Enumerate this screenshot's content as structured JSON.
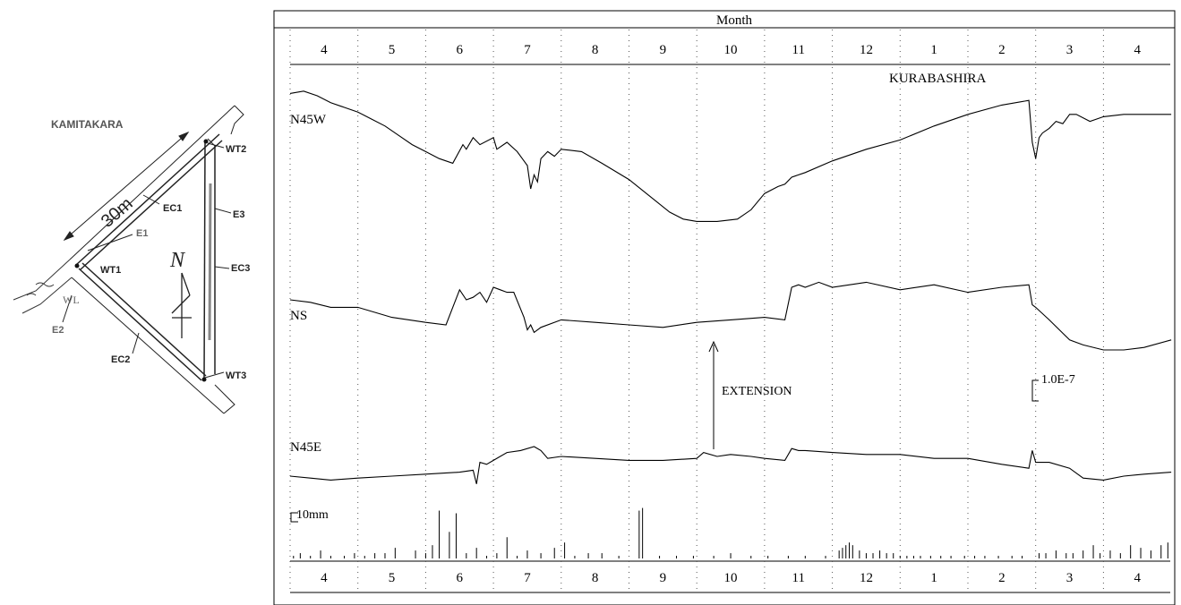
{
  "diagram": {
    "site_name": "KAMITAKARA",
    "length_label": "30m",
    "labels": {
      "wt1": "WT1",
      "wt2": "WT2",
      "wt3": "WT3",
      "ec1": "EC1",
      "ec2": "EC2",
      "ec3": "EC3",
      "e1": "E1",
      "e2": "E2",
      "e3": "E3",
      "wl": "WL",
      "north_symbol": "N"
    }
  },
  "chart_data": {
    "type": "line",
    "title": "Month",
    "station": "KURABASHIRA",
    "months": [
      "4",
      "5",
      "6",
      "7",
      "8",
      "9",
      "10",
      "11",
      "12",
      "1",
      "2",
      "3",
      "4"
    ],
    "series": [
      {
        "name": "N45W",
        "x": [
          0,
          0.2,
          0.4,
          0.6,
          0.8,
          1,
          1.2,
          1.4,
          1.6,
          1.8,
          2,
          2.2,
          2.4,
          2.55,
          2.6,
          2.7,
          2.8,
          3,
          3.05,
          3.2,
          3.35,
          3.45,
          3.5,
          3.55,
          3.6,
          3.65,
          3.7,
          3.8,
          3.9,
          4,
          4.3,
          4.6,
          5,
          5.3,
          5.6,
          5.8,
          6,
          6.3,
          6.6,
          6.8,
          7,
          7.2,
          7.3,
          7.4,
          7.6,
          8,
          8.5,
          9,
          9.5,
          10,
          10.5,
          10.9,
          10.95,
          11,
          11.05,
          11.1,
          11.2,
          11.3,
          11.4,
          11.5,
          11.6,
          11.8,
          12,
          12.3,
          12.6,
          13
        ],
        "y": [
          0.6,
          0.7,
          0.5,
          0.2,
          0,
          -0.2,
          -0.5,
          -0.8,
          -1.2,
          -1.6,
          -1.9,
          -2.2,
          -2.4,
          -1.6,
          -1.8,
          -1.3,
          -1.6,
          -1.3,
          -1.8,
          -1.5,
          -1.9,
          -2.3,
          -2.5,
          -3.5,
          -2.9,
          -3.2,
          -2.2,
          -1.9,
          -2.1,
          -1.8,
          -1.9,
          -2.4,
          -3.1,
          -3.8,
          -4.5,
          -4.8,
          -4.9,
          -4.9,
          -4.8,
          -4.4,
          -3.7,
          -3.4,
          -3.3,
          -3.0,
          -2.8,
          -2.3,
          -1.8,
          -1.4,
          -0.8,
          -0.3,
          0.1,
          0.3,
          -1.5,
          -2.2,
          -1.3,
          -1.1,
          -0.9,
          -0.6,
          -0.7,
          -0.3,
          -0.3,
          -0.6,
          -0.4,
          -0.3,
          -0.3,
          -0.3
        ]
      },
      {
        "name": "NS",
        "x": [
          0,
          0.3,
          0.6,
          1,
          1.5,
          2,
          2.3,
          2.5,
          2.6,
          2.7,
          2.8,
          2.9,
          3,
          3.1,
          3.2,
          3.3,
          3.45,
          3.5,
          3.55,
          3.6,
          3.7,
          4,
          4.5,
          5,
          5.5,
          6,
          6.5,
          7,
          7.3,
          7.4,
          7.5,
          7.6,
          7.8,
          8,
          8.5,
          9,
          9.5,
          10,
          10.5,
          10.9,
          10.95,
          11,
          11.2,
          11.5,
          11.7,
          12,
          12.3,
          12.6,
          13
        ],
        "y": [
          0,
          -0.1,
          -0.3,
          -0.3,
          -0.7,
          -0.9,
          -1.0,
          0.4,
          0.0,
          0.1,
          0.3,
          -0.1,
          0.5,
          0.4,
          0.3,
          0.3,
          -0.7,
          -1.2,
          -1.0,
          -1.3,
          -1.1,
          -0.8,
          -0.9,
          -1.0,
          -1.1,
          -0.9,
          -0.8,
          -0.7,
          -0.8,
          0.5,
          0.6,
          0.5,
          0.7,
          0.5,
          0.7,
          0.4,
          0.6,
          0.3,
          0.5,
          0.6,
          -0.2,
          -0.3,
          -0.8,
          -1.6,
          -1.8,
          -2.0,
          -2.0,
          -1.9,
          -1.6
        ]
      },
      {
        "name": "N45E",
        "x": [
          0,
          0.3,
          0.6,
          1,
          1.5,
          2,
          2.5,
          2.7,
          2.75,
          2.8,
          2.9,
          3,
          3.2,
          3.4,
          3.6,
          3.7,
          3.8,
          4,
          4.5,
          5,
          5.5,
          6,
          6.1,
          6.3,
          6.5,
          6.8,
          7,
          7.3,
          7.4,
          7.5,
          7.6,
          8,
          8.5,
          9,
          9.5,
          10,
          10.5,
          10.9,
          10.95,
          11,
          11.2,
          11.5,
          11.7,
          12,
          12.3,
          12.6,
          13
        ],
        "y": [
          -1.0,
          -1.1,
          -1.2,
          -1.1,
          -1.0,
          -0.9,
          -0.8,
          -0.7,
          -1.4,
          -0.3,
          -0.4,
          -0.2,
          0.2,
          0.3,
          0.5,
          0.3,
          -0.1,
          0,
          -0.1,
          -0.2,
          -0.2,
          -0.1,
          0.2,
          0.0,
          0.1,
          0.0,
          -0.1,
          -0.2,
          0.4,
          0.3,
          0.3,
          0.2,
          0.1,
          0.1,
          -0.1,
          -0.1,
          -0.4,
          -0.6,
          0.3,
          -0.3,
          -0.3,
          -0.6,
          -1.1,
          -1.2,
          -1.0,
          -0.9,
          -0.8
        ]
      }
    ],
    "precipitation": {
      "label": "10mm",
      "x": [
        0.05,
        0.15,
        0.3,
        0.45,
        0.6,
        0.8,
        0.95,
        1.1,
        1.25,
        1.4,
        1.55,
        1.85,
        2.0,
        2.1,
        2.2,
        2.35,
        2.45,
        2.6,
        2.75,
        2.9,
        3.05,
        3.2,
        3.35,
        3.5,
        3.7,
        3.9,
        4.05,
        4.2,
        4.4,
        4.6,
        4.85,
        5.15,
        5.2,
        5.45,
        5.7,
        5.95,
        6.25,
        6.5,
        6.8,
        7.05,
        7.35,
        7.6,
        7.9,
        8.1,
        8.15,
        8.2,
        8.25,
        8.3,
        8.4,
        8.5,
        8.6,
        8.7,
        8.8,
        8.9,
        9.0,
        9.1,
        9.2,
        9.3,
        9.45,
        9.6,
        9.75,
        9.95,
        10.1,
        10.25,
        10.45,
        10.65,
        10.8,
        11.05,
        11.15,
        11.3,
        11.45,
        11.55,
        11.7,
        11.85,
        11.95,
        12.1,
        12.25,
        12.4,
        12.55,
        12.7,
        12.85,
        12.95
      ],
      "values": [
        1,
        2,
        1,
        3,
        1,
        1,
        2,
        1,
        2,
        2,
        4,
        3,
        2,
        5,
        18,
        10,
        17,
        2,
        4,
        1,
        2,
        8,
        1,
        3,
        2,
        4,
        6,
        1,
        2,
        2,
        1,
        18,
        19,
        1,
        1,
        1,
        1,
        2,
        1,
        1,
        1,
        1,
        1,
        3,
        4,
        5,
        6,
        5,
        3,
        2,
        2,
        3,
        2,
        2,
        1,
        1,
        1,
        1,
        1,
        1,
        1,
        1,
        1,
        1,
        1,
        1,
        1,
        2,
        2,
        3,
        2,
        2,
        3,
        5,
        2,
        3,
        2,
        5,
        4,
        3,
        5,
        6
      ]
    },
    "annotations": {
      "extension_label": "EXTENSION",
      "scale_label": "1.0E-7"
    },
    "grid": "dotted vertical at month boundaries"
  }
}
